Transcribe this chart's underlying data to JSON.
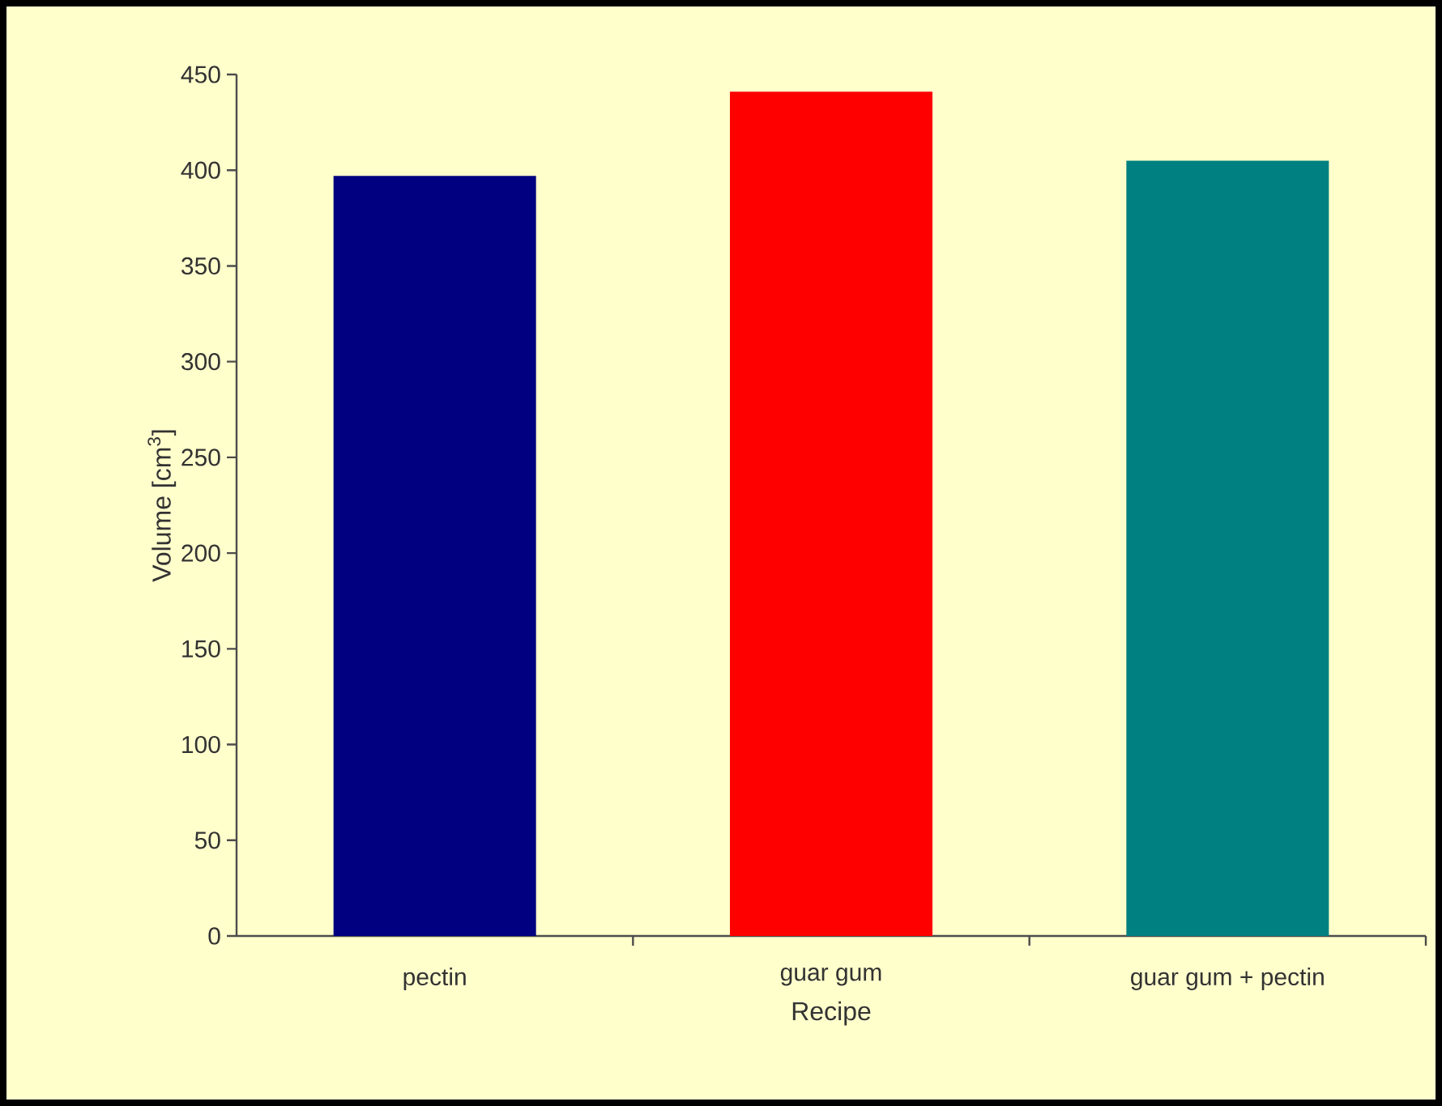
{
  "chart_data": {
    "type": "bar",
    "xlabel": "Recipe",
    "ylabel": "Volume [cm$^{3}$]",
    "categories": [
      "pectin",
      "guar gum",
      "guar gum + pectin"
    ],
    "values": [
      397,
      441,
      405
    ],
    "colors": [
      "#000080",
      "#ff0000",
      "#008080"
    ],
    "ylim": [
      0,
      450
    ],
    "yticks": [
      0,
      50,
      100,
      150,
      200,
      250,
      300,
      350,
      400,
      450
    ],
    "grid": false
  }
}
